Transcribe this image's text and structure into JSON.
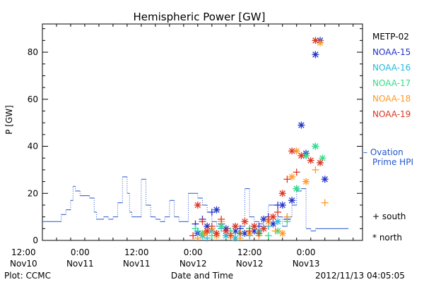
{
  "chart_data": {
    "type": "scatter",
    "title": "Hemispheric Power [GW]",
    "ylabel": "P [GW]",
    "xlabel": "Date and Time",
    "ylim": [
      0,
      92
    ],
    "xlim_hours": [
      -8,
      60
    ],
    "y_ticks": [
      0,
      20,
      40,
      60,
      80
    ],
    "x_ticks": [
      {
        "h": -12,
        "time": "12:00",
        "date": "Nov10"
      },
      {
        "h": 0,
        "time": "0:00",
        "date": "Nov11"
      },
      {
        "h": 12,
        "time": "12:00",
        "date": "Nov11"
      },
      {
        "h": 24,
        "time": "0:00",
        "date": "Nov12"
      },
      {
        "h": 36,
        "time": "12:00",
        "date": "Nov12"
      },
      {
        "h": 48,
        "time": "0:00",
        "date": "Nov13"
      }
    ],
    "x_tick_time_label": "hours relative to 0:00 Nov11 (for layout of tick positions)",
    "legend_satellites": [
      {
        "name": "METP-02",
        "color": "#000000"
      },
      {
        "name": "NOAA-15",
        "color": "#2233cc"
      },
      {
        "name": "NOAA-16",
        "color": "#22bbdd"
      },
      {
        "name": "NOAA-17",
        "color": "#33dd88"
      },
      {
        "name": "NOAA-18",
        "color": "#ff9922"
      },
      {
        "name": "NOAA-19",
        "color": "#dd3322"
      }
    ],
    "ovation_label_line1": "– Ovation",
    "ovation_label_line2": "Prime HPI",
    "ovation_color": "#2255cc",
    "marker_legend": [
      {
        "symbol": "+",
        "label": "south"
      },
      {
        "symbol": "*",
        "label": "north"
      }
    ],
    "series": [
      {
        "name": "Ovation Prime HPI",
        "kind": "step",
        "x": [
          -8,
          -4.5,
          -4,
          -3,
          -2,
          -1.5,
          -1,
          0,
          1,
          2,
          3,
          3.5,
          4,
          5,
          6,
          7,
          8,
          9,
          10,
          10.5,
          11,
          12,
          13,
          14,
          15,
          16,
          17,
          18,
          19,
          20,
          21,
          22,
          23,
          24,
          25,
          26,
          27,
          28,
          29,
          30,
          31,
          32,
          33,
          34,
          35,
          36,
          37,
          38,
          39,
          40,
          41,
          42,
          43,
          44,
          45,
          46,
          47,
          48,
          49,
          50,
          51,
          52,
          53,
          54,
          55,
          56,
          57
        ],
        "values": [
          8,
          8,
          11,
          13,
          17,
          23,
          21,
          19,
          19,
          18,
          12,
          9,
          9,
          10,
          9,
          10,
          16,
          27,
          20,
          12,
          10,
          10,
          26,
          15,
          10,
          9,
          8,
          10,
          17,
          10,
          8,
          8,
          20,
          20,
          18,
          15,
          12,
          8,
          6,
          5,
          5,
          4,
          4,
          6,
          22,
          10,
          8,
          7,
          6,
          15,
          15,
          10,
          6,
          10,
          15,
          21,
          22,
          5,
          4,
          5,
          5,
          5,
          5,
          5,
          5,
          5,
          5
        ]
      },
      {
        "name": "NOAA-15",
        "color": "#2233cc",
        "points": [
          [
            24.5,
            7
          ],
          [
            25,
            3
          ],
          [
            26,
            9
          ],
          [
            27,
            6
          ],
          [
            28,
            12
          ],
          [
            29,
            13
          ],
          [
            30,
            7
          ],
          [
            31,
            5
          ],
          [
            32,
            3
          ],
          [
            33,
            4
          ],
          [
            34,
            5
          ],
          [
            35,
            3
          ],
          [
            36,
            5
          ],
          [
            37,
            4
          ],
          [
            38,
            6
          ],
          [
            39,
            9
          ],
          [
            40,
            10
          ],
          [
            41,
            7
          ],
          [
            42,
            15
          ],
          [
            43,
            15
          ],
          [
            44,
            9
          ],
          [
            45,
            17
          ],
          [
            46,
            22
          ],
          [
            47,
            49
          ],
          [
            48,
            37
          ],
          [
            50,
            79
          ],
          [
            51,
            85
          ],
          [
            52,
            26
          ]
        ]
      },
      {
        "name": "NOAA-16",
        "color": "#22bbdd",
        "points": [
          [
            25,
            4
          ],
          [
            26,
            2
          ],
          [
            27,
            1
          ],
          [
            28,
            4
          ],
          [
            30,
            5
          ],
          [
            31,
            2
          ],
          [
            32,
            3
          ],
          [
            33,
            1
          ],
          [
            36,
            2
          ],
          [
            38,
            4
          ],
          [
            40,
            6
          ],
          [
            42,
            8
          ],
          [
            44,
            10
          ],
          [
            46,
            22
          ],
          [
            48,
            36
          ],
          [
            50,
            40
          ]
        ]
      },
      {
        "name": "NOAA-17",
        "color": "#33dd88",
        "points": [
          [
            24.5,
            5
          ],
          [
            26,
            3
          ],
          [
            28,
            2
          ],
          [
            30,
            6
          ],
          [
            32,
            4
          ],
          [
            34,
            3
          ],
          [
            36,
            5
          ],
          [
            38,
            3
          ],
          [
            40,
            2
          ],
          [
            42,
            4
          ],
          [
            44,
            8
          ],
          [
            46,
            22
          ],
          [
            48,
            36
          ],
          [
            50,
            40
          ],
          [
            51.5,
            35
          ]
        ]
      },
      {
        "name": "NOAA-18",
        "color": "#ff9922",
        "points": [
          [
            25,
            1
          ],
          [
            26.5,
            3
          ],
          [
            28,
            5
          ],
          [
            29,
            2
          ],
          [
            30,
            8
          ],
          [
            32,
            2
          ],
          [
            34,
            1
          ],
          [
            36,
            3
          ],
          [
            38,
            2
          ],
          [
            40,
            8
          ],
          [
            41.5,
            4
          ],
          [
            43,
            3
          ],
          [
            44,
            10
          ],
          [
            45,
            27
          ],
          [
            46,
            38
          ],
          [
            48,
            25
          ],
          [
            50,
            30
          ],
          [
            51,
            84
          ],
          [
            52,
            16
          ]
        ]
      },
      {
        "name": "NOAA-19",
        "color": "#dd3322",
        "points": [
          [
            24,
            2
          ],
          [
            25,
            15
          ],
          [
            26,
            8
          ],
          [
            27,
            4
          ],
          [
            28,
            6
          ],
          [
            29,
            3
          ],
          [
            30,
            9
          ],
          [
            31,
            4
          ],
          [
            32,
            2
          ],
          [
            33,
            6
          ],
          [
            34,
            3
          ],
          [
            35,
            8
          ],
          [
            36,
            4
          ],
          [
            37,
            6
          ],
          [
            38,
            3
          ],
          [
            39,
            5
          ],
          [
            40,
            9
          ],
          [
            41,
            10
          ],
          [
            42,
            12
          ],
          [
            43,
            20
          ],
          [
            44,
            26
          ],
          [
            45,
            38
          ],
          [
            46,
            29
          ],
          [
            47,
            36
          ],
          [
            49,
            34
          ],
          [
            50,
            85
          ],
          [
            51,
            33
          ]
        ]
      }
    ]
  },
  "footer": {
    "plot_label": "Plot: CCMC",
    "timestamp": "2012/11/13 04:05:05"
  }
}
